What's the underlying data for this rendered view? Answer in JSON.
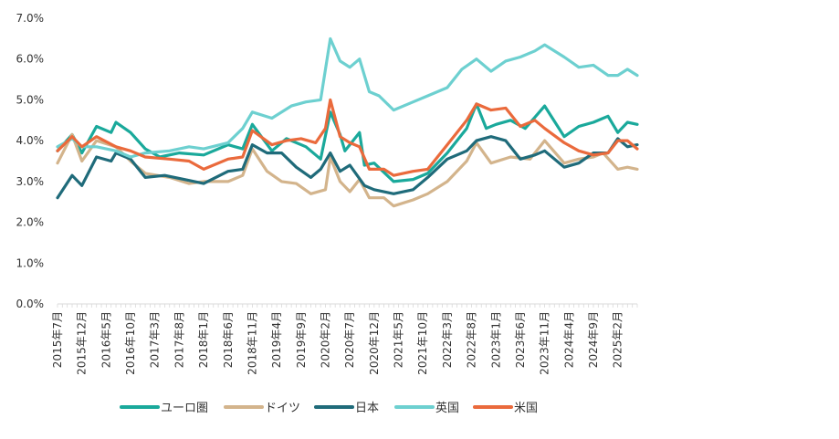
{
  "chart_data": {
    "type": "line",
    "title": "",
    "xlabel": "",
    "ylabel": "",
    "ylim": [
      0,
      7
    ],
    "y_ticks": [
      "0.0%",
      "1.0%",
      "2.0%",
      "3.0%",
      "4.0%",
      "5.0%",
      "6.0%",
      "7.0%"
    ],
    "y_tick_values": [
      0,
      1,
      2,
      3,
      4,
      5,
      6,
      7
    ],
    "x_start": "2015-07",
    "x_end": "2025-06",
    "x_tick_labels": [
      "2015年7月",
      "2015年12月",
      "2016年5月",
      "2016年10月",
      "2017年3月",
      "2017年8月",
      "2018年1月",
      "2018年6月",
      "2018年11月",
      "2019年4月",
      "2019年9月",
      "2020年2月",
      "2020年7月",
      "2020年12月",
      "2021年5月",
      "2021年10月",
      "2022年3月",
      "2022年8月",
      "2023年1月",
      "2023年6月",
      "2023年11月",
      "2024年4月",
      "2024年9月",
      "2025年2月"
    ],
    "grid": false,
    "legend_position": "bottom",
    "series": [
      {
        "name": "ユーロ圏",
        "color": "#1aa99b",
        "points": [
          [
            "2015-07",
            3.75
          ],
          [
            "2015-10",
            4.15
          ],
          [
            "2015-12",
            3.7
          ],
          [
            "2016-03",
            4.35
          ],
          [
            "2016-06",
            4.2
          ],
          [
            "2016-07",
            4.45
          ],
          [
            "2016-10",
            4.2
          ],
          [
            "2017-01",
            3.8
          ],
          [
            "2017-04",
            3.6
          ],
          [
            "2017-08",
            3.7
          ],
          [
            "2018-01",
            3.65
          ],
          [
            "2018-06",
            3.9
          ],
          [
            "2018-09",
            3.8
          ],
          [
            "2018-11",
            4.4
          ],
          [
            "2019-03",
            3.75
          ],
          [
            "2019-06",
            4.05
          ],
          [
            "2019-10",
            3.85
          ],
          [
            "2020-01",
            3.55
          ],
          [
            "2020-03",
            4.7
          ],
          [
            "2020-05",
            4.15
          ],
          [
            "2020-06",
            3.75
          ],
          [
            "2020-09",
            4.2
          ],
          [
            "2020-10",
            3.4
          ],
          [
            "2020-12",
            3.45
          ],
          [
            "2021-04",
            3.0
          ],
          [
            "2021-08",
            3.05
          ],
          [
            "2021-11",
            3.2
          ],
          [
            "2022-03",
            3.7
          ],
          [
            "2022-07",
            4.3
          ],
          [
            "2022-09",
            4.9
          ],
          [
            "2022-11",
            4.3
          ],
          [
            "2023-01",
            4.4
          ],
          [
            "2023-04",
            4.5
          ],
          [
            "2023-07",
            4.3
          ],
          [
            "2023-11",
            4.85
          ],
          [
            "2024-03",
            4.1
          ],
          [
            "2024-06",
            4.35
          ],
          [
            "2024-09",
            4.45
          ],
          [
            "2024-12",
            4.6
          ],
          [
            "2025-02",
            4.2
          ],
          [
            "2025-04",
            4.45
          ],
          [
            "2025-06",
            4.4
          ]
        ]
      },
      {
        "name": "ドイツ",
        "color": "#d3b48c",
        "points": [
          [
            "2015-07",
            3.45
          ],
          [
            "2015-10",
            4.15
          ],
          [
            "2015-12",
            3.5
          ],
          [
            "2016-03",
            4.0
          ],
          [
            "2016-07",
            3.85
          ],
          [
            "2016-10",
            3.5
          ],
          [
            "2017-01",
            3.2
          ],
          [
            "2017-06",
            3.1
          ],
          [
            "2017-10",
            2.95
          ],
          [
            "2018-01",
            3.0
          ],
          [
            "2018-06",
            3.0
          ],
          [
            "2018-09",
            3.15
          ],
          [
            "2018-11",
            3.8
          ],
          [
            "2019-02",
            3.25
          ],
          [
            "2019-05",
            3.0
          ],
          [
            "2019-08",
            2.95
          ],
          [
            "2019-11",
            2.7
          ],
          [
            "2020-02",
            2.8
          ],
          [
            "2020-03",
            3.6
          ],
          [
            "2020-05",
            3.0
          ],
          [
            "2020-07",
            2.75
          ],
          [
            "2020-09",
            3.05
          ],
          [
            "2020-11",
            2.6
          ],
          [
            "2021-02",
            2.6
          ],
          [
            "2021-04",
            2.4
          ],
          [
            "2021-08",
            2.55
          ],
          [
            "2021-11",
            2.7
          ],
          [
            "2022-03",
            3.0
          ],
          [
            "2022-07",
            3.5
          ],
          [
            "2022-09",
            3.95
          ],
          [
            "2022-12",
            3.45
          ],
          [
            "2023-04",
            3.6
          ],
          [
            "2023-08",
            3.55
          ],
          [
            "2023-11",
            4.0
          ],
          [
            "2024-03",
            3.45
          ],
          [
            "2024-06",
            3.55
          ],
          [
            "2024-09",
            3.6
          ],
          [
            "2024-11",
            3.7
          ],
          [
            "2025-02",
            3.3
          ],
          [
            "2025-04",
            3.35
          ],
          [
            "2025-06",
            3.3
          ]
        ]
      },
      {
        "name": "日本",
        "color": "#1f6b7a",
        "points": [
          [
            "2015-07",
            2.6
          ],
          [
            "2015-10",
            3.15
          ],
          [
            "2015-12",
            2.9
          ],
          [
            "2016-03",
            3.6
          ],
          [
            "2016-06",
            3.5
          ],
          [
            "2016-07",
            3.7
          ],
          [
            "2016-10",
            3.55
          ],
          [
            "2017-01",
            3.1
          ],
          [
            "2017-05",
            3.15
          ],
          [
            "2017-09",
            3.05
          ],
          [
            "2018-01",
            2.95
          ],
          [
            "2018-06",
            3.25
          ],
          [
            "2018-09",
            3.3
          ],
          [
            "2018-11",
            3.9
          ],
          [
            "2019-02",
            3.7
          ],
          [
            "2019-05",
            3.7
          ],
          [
            "2019-08",
            3.35
          ],
          [
            "2019-11",
            3.1
          ],
          [
            "2020-01",
            3.3
          ],
          [
            "2020-03",
            3.7
          ],
          [
            "2020-05",
            3.25
          ],
          [
            "2020-07",
            3.4
          ],
          [
            "2020-10",
            2.9
          ],
          [
            "2020-12",
            2.8
          ],
          [
            "2021-04",
            2.7
          ],
          [
            "2021-08",
            2.8
          ],
          [
            "2021-11",
            3.1
          ],
          [
            "2022-03",
            3.55
          ],
          [
            "2022-07",
            3.75
          ],
          [
            "2022-09",
            4.0
          ],
          [
            "2022-12",
            4.1
          ],
          [
            "2023-03",
            4.0
          ],
          [
            "2023-06",
            3.55
          ],
          [
            "2023-09",
            3.65
          ],
          [
            "2023-11",
            3.75
          ],
          [
            "2024-03",
            3.35
          ],
          [
            "2024-06",
            3.45
          ],
          [
            "2024-09",
            3.7
          ],
          [
            "2024-12",
            3.7
          ],
          [
            "2025-02",
            4.05
          ],
          [
            "2025-04",
            3.85
          ],
          [
            "2025-06",
            3.9
          ]
        ]
      },
      {
        "name": "英国",
        "color": "#6dd0d0",
        "points": [
          [
            "2015-07",
            3.85
          ],
          [
            "2015-10",
            4.05
          ],
          [
            "2015-12",
            3.85
          ],
          [
            "2016-03",
            3.85
          ],
          [
            "2016-07",
            3.75
          ],
          [
            "2016-10",
            3.6
          ],
          [
            "2017-01",
            3.7
          ],
          [
            "2017-06",
            3.75
          ],
          [
            "2017-10",
            3.85
          ],
          [
            "2018-01",
            3.8
          ],
          [
            "2018-06",
            3.95
          ],
          [
            "2018-09",
            4.3
          ],
          [
            "2018-11",
            4.7
          ],
          [
            "2019-03",
            4.55
          ],
          [
            "2019-07",
            4.85
          ],
          [
            "2019-10",
            4.95
          ],
          [
            "2020-01",
            5.0
          ],
          [
            "2020-03",
            6.5
          ],
          [
            "2020-05",
            5.95
          ],
          [
            "2020-07",
            5.8
          ],
          [
            "2020-09",
            6.0
          ],
          [
            "2020-11",
            5.2
          ],
          [
            "2021-01",
            5.1
          ],
          [
            "2021-04",
            4.75
          ],
          [
            "2021-08",
            4.95
          ],
          [
            "2021-11",
            5.1
          ],
          [
            "2022-03",
            5.3
          ],
          [
            "2022-06",
            5.75
          ],
          [
            "2022-09",
            6.0
          ],
          [
            "2022-12",
            5.7
          ],
          [
            "2023-03",
            5.95
          ],
          [
            "2023-06",
            6.05
          ],
          [
            "2023-09",
            6.2
          ],
          [
            "2023-11",
            6.35
          ],
          [
            "2024-03",
            6.05
          ],
          [
            "2024-06",
            5.8
          ],
          [
            "2024-09",
            5.85
          ],
          [
            "2024-12",
            5.6
          ],
          [
            "2025-02",
            5.6
          ],
          [
            "2025-04",
            5.75
          ],
          [
            "2025-06",
            5.6
          ]
        ]
      },
      {
        "name": "米国",
        "color": "#ea6a3c",
        "points": [
          [
            "2015-07",
            3.75
          ],
          [
            "2015-10",
            4.1
          ],
          [
            "2015-12",
            3.85
          ],
          [
            "2016-03",
            4.1
          ],
          [
            "2016-07",
            3.85
          ],
          [
            "2016-10",
            3.75
          ],
          [
            "2017-01",
            3.6
          ],
          [
            "2017-06",
            3.55
          ],
          [
            "2017-10",
            3.5
          ],
          [
            "2018-01",
            3.3
          ],
          [
            "2018-06",
            3.55
          ],
          [
            "2018-09",
            3.6
          ],
          [
            "2018-11",
            4.25
          ],
          [
            "2019-03",
            3.9
          ],
          [
            "2019-06",
            4.0
          ],
          [
            "2019-09",
            4.05
          ],
          [
            "2019-12",
            3.95
          ],
          [
            "2020-02",
            4.3
          ],
          [
            "2020-03",
            5.0
          ],
          [
            "2020-05",
            4.1
          ],
          [
            "2020-07",
            3.95
          ],
          [
            "2020-09",
            3.85
          ],
          [
            "2020-11",
            3.3
          ],
          [
            "2021-02",
            3.3
          ],
          [
            "2021-04",
            3.15
          ],
          [
            "2021-08",
            3.25
          ],
          [
            "2021-11",
            3.3
          ],
          [
            "2022-03",
            3.9
          ],
          [
            "2022-07",
            4.5
          ],
          [
            "2022-09",
            4.9
          ],
          [
            "2022-12",
            4.75
          ],
          [
            "2023-03",
            4.8
          ],
          [
            "2023-06",
            4.35
          ],
          [
            "2023-09",
            4.5
          ],
          [
            "2023-11",
            4.3
          ],
          [
            "2024-03",
            3.95
          ],
          [
            "2024-06",
            3.75
          ],
          [
            "2024-09",
            3.65
          ],
          [
            "2024-12",
            3.7
          ],
          [
            "2025-02",
            4.0
          ],
          [
            "2025-04",
            4.0
          ],
          [
            "2025-06",
            3.8
          ]
        ]
      }
    ]
  }
}
